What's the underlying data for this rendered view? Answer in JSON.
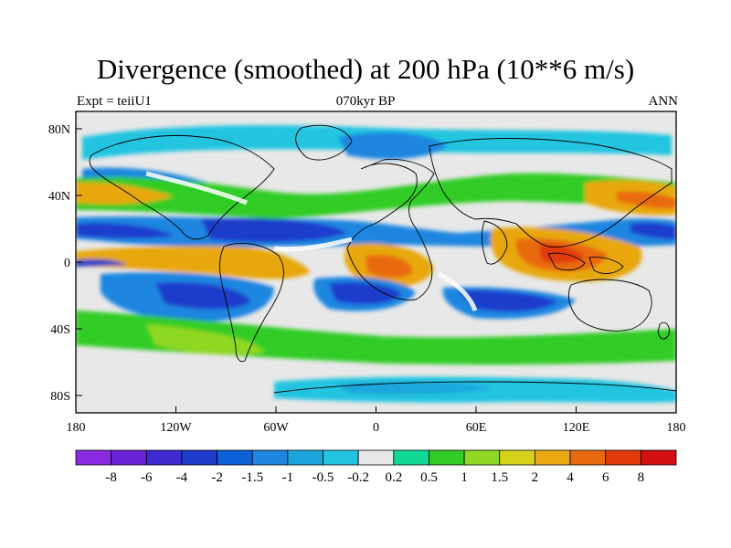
{
  "title": "Divergence (smoothed) at 200 hPa (10**6 m/s)",
  "subtitle_left": "Expt = teiiU1",
  "subtitle_center": "070kyr BP",
  "subtitle_right": "ANN",
  "lat_ticks": [
    "80N",
    "40N",
    "0",
    "40S",
    "80S"
  ],
  "lon_ticks": [
    "180",
    "120W",
    "60W",
    "0",
    "60E",
    "120E",
    "180"
  ],
  "colorbar": {
    "labels": [
      "-8",
      "-6",
      "-4",
      "-2",
      "-1.5",
      "-1",
      "-0.5",
      "-0.2",
      "0.2",
      "0.5",
      "1",
      "1.5",
      "2",
      "4",
      "6",
      "8"
    ],
    "colors": [
      "#8a2be2",
      "#6a22d8",
      "#3f2ad0",
      "#1f3ccc",
      "#0d60d8",
      "#1d86e0",
      "#1aa6dc",
      "#22c4e0",
      "#e8e8e8",
      "#10d896",
      "#32cc28",
      "#8ed822",
      "#d6d21a",
      "#e8a810",
      "#e86a10",
      "#e23a0a",
      "#d40f0f"
    ]
  },
  "colors": {
    "land_outline": "#000000",
    "neutral": "#e8e8e8"
  }
}
